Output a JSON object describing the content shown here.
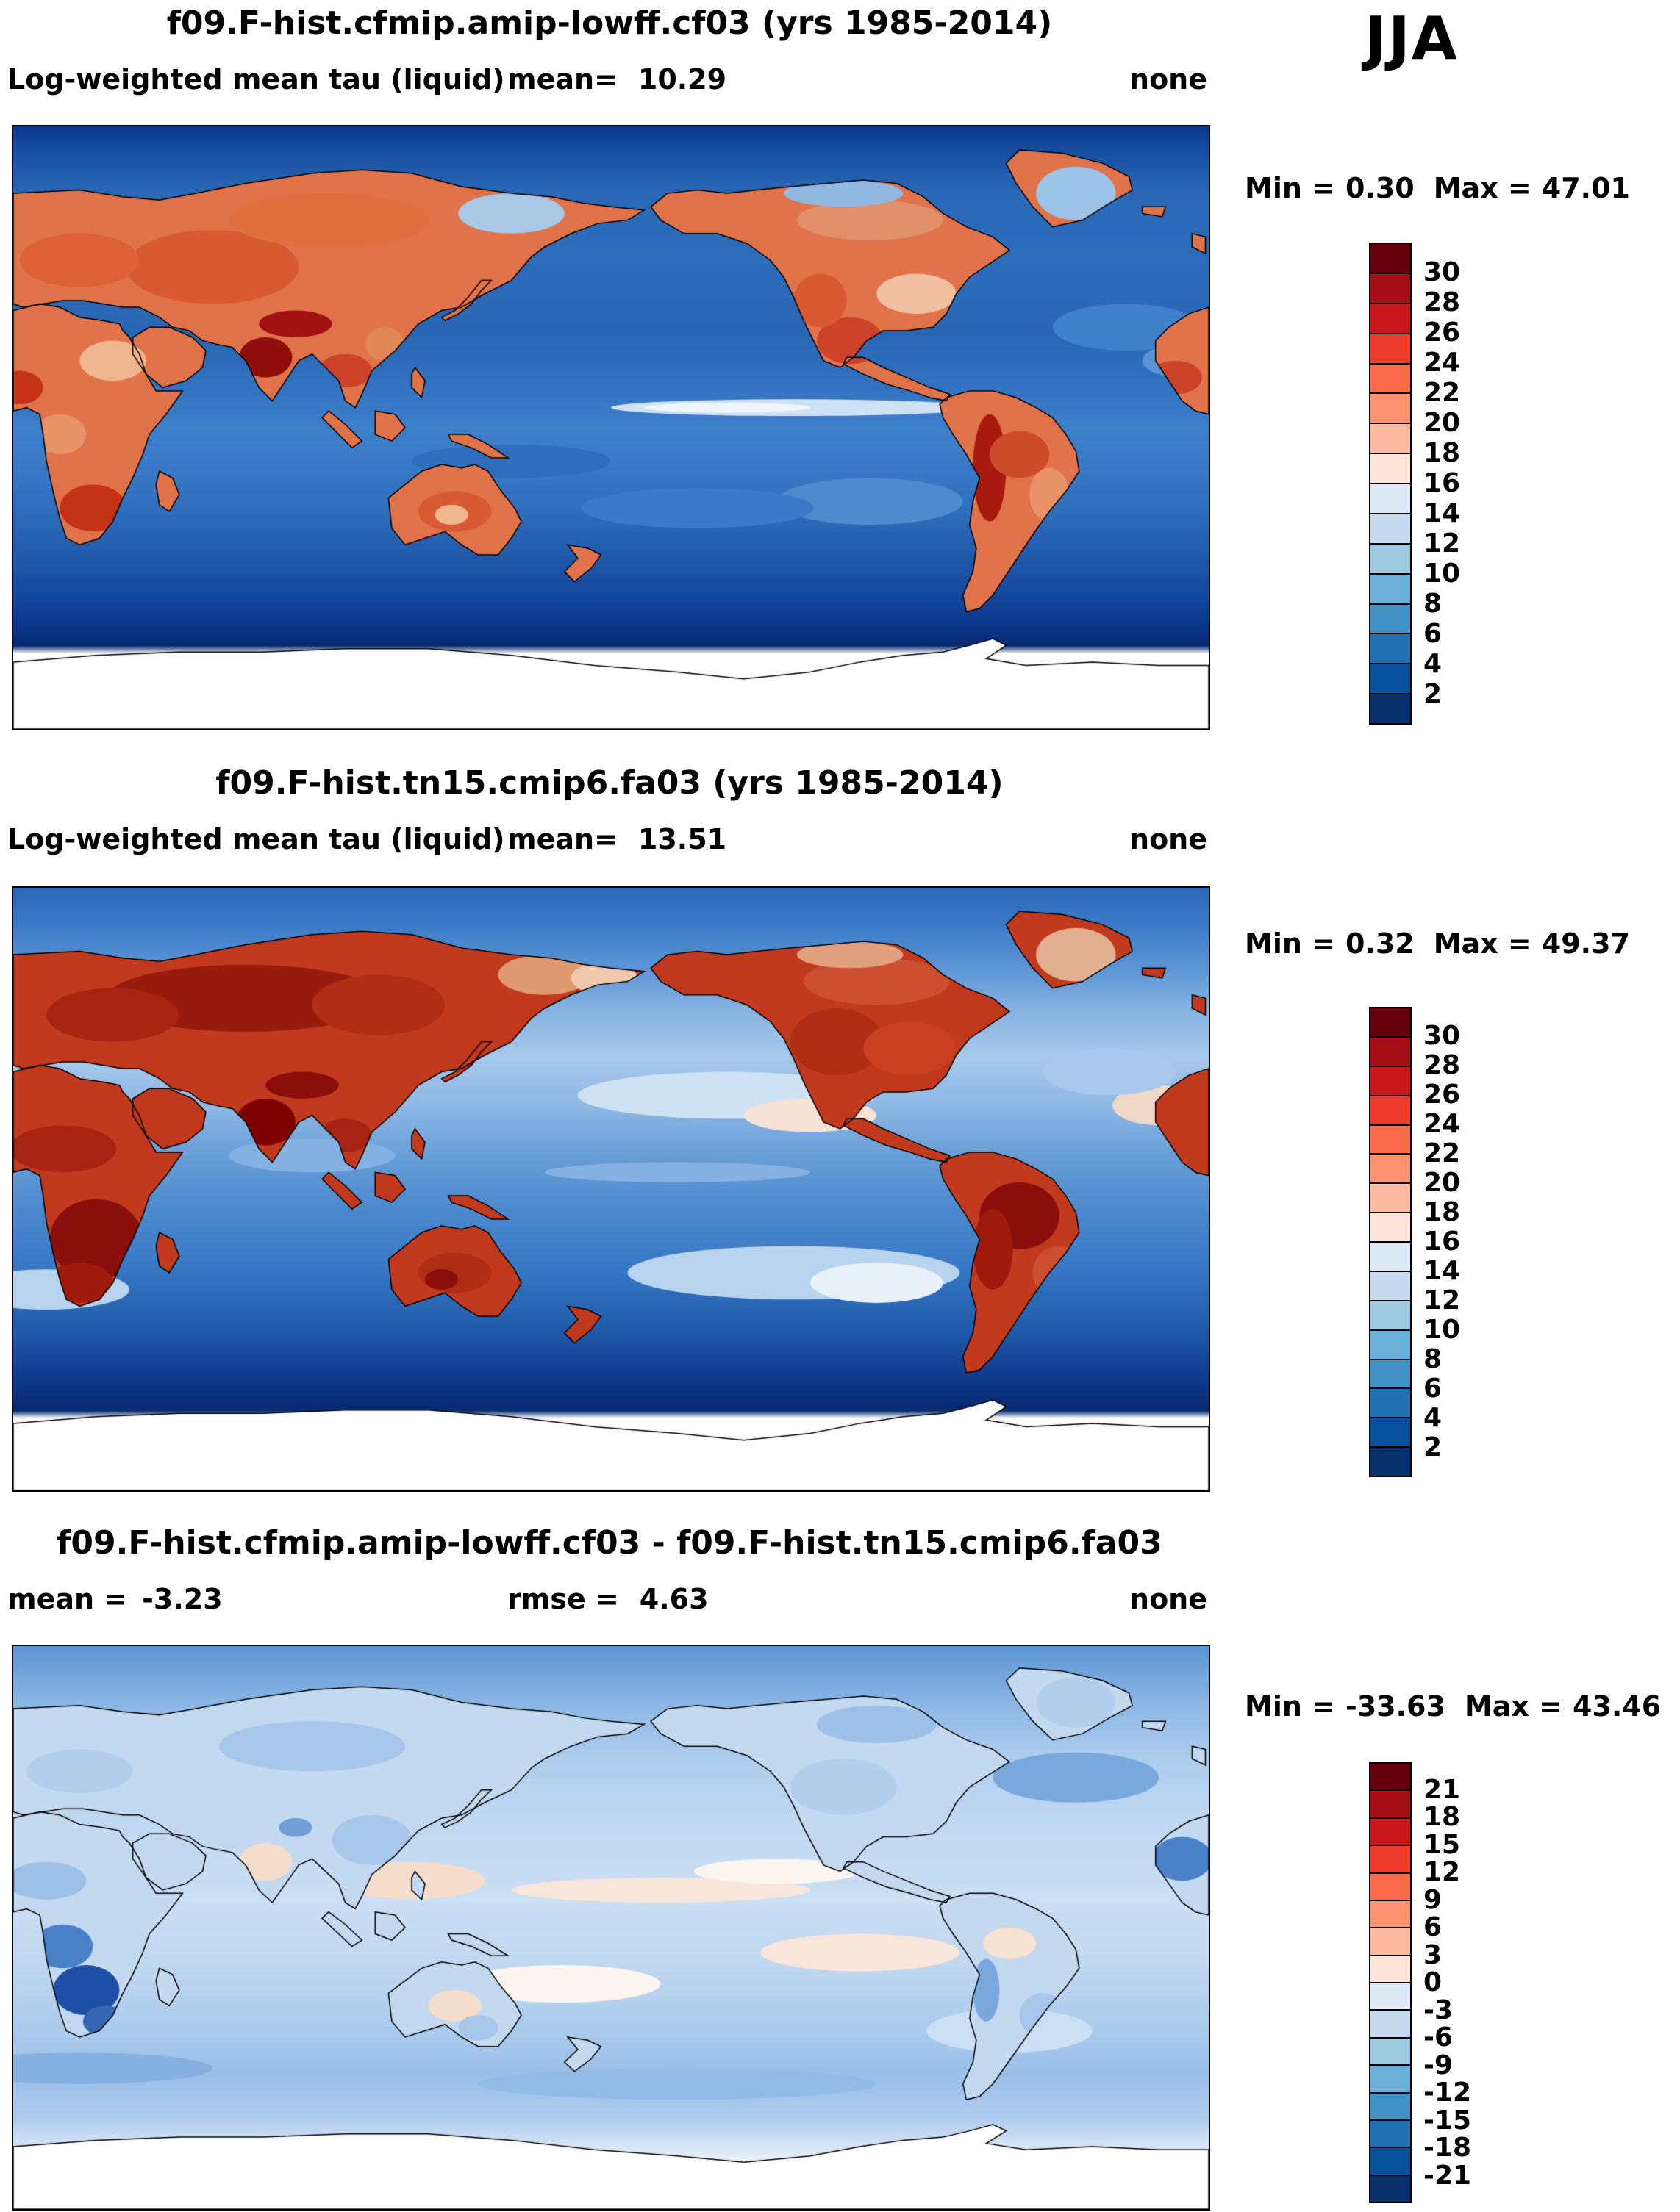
{
  "page": {
    "season": "JJA"
  },
  "panels": [
    {
      "title": "f09.F-hist.cfmip.amip-lowff.cf03 (yrs 1985-2014)",
      "variable": "Log-weighted mean tau (liquid)",
      "stats": {
        "mean_label": "mean=",
        "mean": "10.29",
        "units": "none"
      },
      "minmax": {
        "min_label": "Min =",
        "min": "0.30",
        "max_label": "Max =",
        "max": "47.01"
      },
      "map_style": "field1",
      "colorbar": {
        "labels": [
          "30",
          "28",
          "26",
          "24",
          "22",
          "20",
          "18",
          "16",
          "14",
          "12",
          "10",
          "8",
          "6",
          "4",
          "2"
        ],
        "colors": [
          "#67000d",
          "#a50f15",
          "#cb181d",
          "#ef3b2c",
          "#fb6a4a",
          "#fc9272",
          "#fcbba1",
          "#fee5d9",
          "#deebf7",
          "#c6dbef",
          "#9ecae1",
          "#6baed6",
          "#4292c6",
          "#2171b5",
          "#08519c",
          "#08306b"
        ]
      }
    },
    {
      "title": "f09.F-hist.tn15.cmip6.fa03 (yrs 1985-2014)",
      "variable": "Log-weighted mean tau (liquid)",
      "stats": {
        "mean_label": "mean=",
        "mean": "13.51",
        "units": "none"
      },
      "minmax": {
        "min_label": "Min =",
        "min": "0.32",
        "max_label": "Max =",
        "max": "49.37"
      },
      "map_style": "field2",
      "colorbar": {
        "labels": [
          "30",
          "28",
          "26",
          "24",
          "22",
          "20",
          "18",
          "16",
          "14",
          "12",
          "10",
          "8",
          "6",
          "4",
          "2"
        ],
        "colors": [
          "#67000d",
          "#a50f15",
          "#cb181d",
          "#ef3b2c",
          "#fb6a4a",
          "#fc9272",
          "#fcbba1",
          "#fee5d9",
          "#deebf7",
          "#c6dbef",
          "#9ecae1",
          "#6baed6",
          "#4292c6",
          "#2171b5",
          "#08519c",
          "#08306b"
        ]
      }
    },
    {
      "title": "f09.F-hist.cfmip.amip-lowff.cf03 - f09.F-hist.tn15.cmip6.fa03",
      "stats": {
        "mean_label": "mean =",
        "mean": "-3.23",
        "rmse_label": "rmse =",
        "rmse": "4.63",
        "units": "none"
      },
      "minmax": {
        "min_label": "Min =",
        "min": "-33.63",
        "max_label": "Max =",
        "max": "43.46"
      },
      "map_style": "diff",
      "colorbar": {
        "labels": [
          "21",
          "18",
          "15",
          "12",
          "9",
          "6",
          "3",
          "0",
          "-3",
          "-6",
          "-9",
          "-12",
          "-15",
          "-18",
          "-21"
        ],
        "colors": [
          "#67000d",
          "#a50f15",
          "#cb181d",
          "#ef3b2c",
          "#fb6a4a",
          "#fc9272",
          "#fcbba1",
          "#fee5d9",
          "#deebf7",
          "#c6dbef",
          "#9ecae1",
          "#6baed6",
          "#4292c6",
          "#2171b5",
          "#08519c",
          "#08306b"
        ]
      }
    }
  ],
  "chart_data": [
    {
      "type": "heatmap",
      "subtype": "global-lat-lon-map",
      "season": "JJA",
      "title": "f09.F-hist.cfmip.amip-lowff.cf03 (yrs 1985-2014)",
      "variable": "Log-weighted mean tau (liquid)",
      "units": "none",
      "mean": 10.29,
      "min": 0.3,
      "max": 47.01,
      "contour_levels": [
        2,
        4,
        6,
        8,
        10,
        12,
        14,
        16,
        18,
        20,
        22,
        24,
        26,
        28,
        30
      ],
      "palette": "blue-to-red diverging, red = high tau over land (India, Tibet, Sahel, southern Africa, Andes/Amazon, Australia), blue oceans, white Antarctica",
      "legend_position": "right"
    },
    {
      "type": "heatmap",
      "subtype": "global-lat-lon-map",
      "season": "JJA",
      "title": "f09.F-hist.tn15.cmip6.fa03 (yrs 1985-2014)",
      "variable": "Log-weighted mean tau (liquid)",
      "units": "none",
      "mean": 13.51,
      "min": 0.32,
      "max": 49.37,
      "contour_levels": [
        2,
        4,
        6,
        8,
        10,
        12,
        14,
        16,
        18,
        20,
        22,
        24,
        26,
        28,
        30
      ],
      "palette": "blue-to-red diverging, broadly darker red over Eurasia, Africa, Amazon and the Americas than panel 1; lighter subtropical oceans",
      "legend_position": "right"
    },
    {
      "type": "heatmap",
      "subtype": "global-lat-lon-map-difference",
      "season": "JJA",
      "title": "f09.F-hist.cfmip.amip-lowff.cf03 - f09.F-hist.tn15.cmip6.fa03",
      "units": "none",
      "mean": -3.23,
      "rmse": 4.63,
      "min": -33.63,
      "max": 43.46,
      "contour_levels": [
        -21,
        -18,
        -15,
        -12,
        -9,
        -6,
        -3,
        0,
        3,
        6,
        9,
        12,
        15,
        18,
        21
      ],
      "palette": "blue-to-red diverging centered at 0; mostly pale blue (negative) with strongest negative over southern Africa, faint pink patches in tropics",
      "legend_position": "right"
    }
  ]
}
